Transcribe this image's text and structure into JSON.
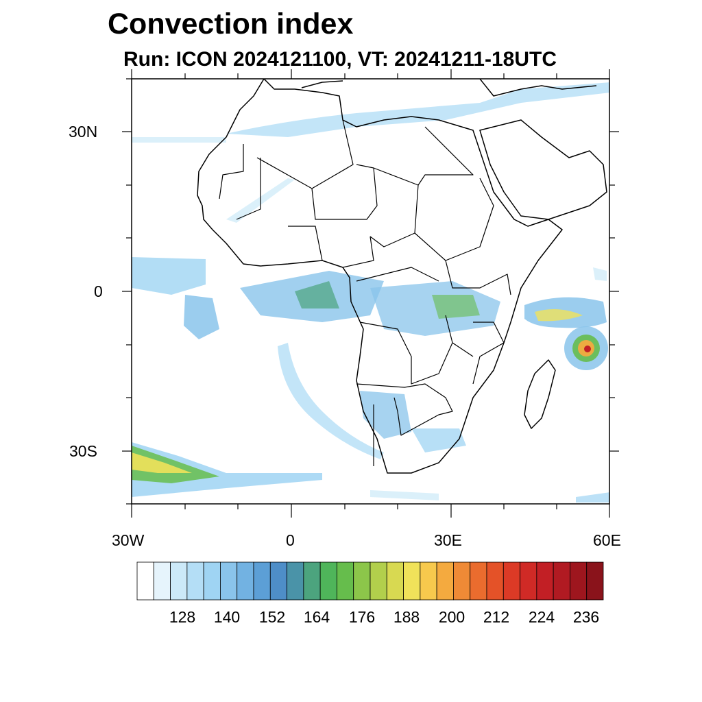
{
  "map": {
    "title": "Convection index",
    "subtitle": "Run: ICON 2024121100,  VT: 20241211-18UTC",
    "lat_labels": [
      "30N",
      "0",
      "30S"
    ],
    "lon_labels": [
      "30W",
      "0",
      "30E",
      "60E"
    ],
    "lon_range": [
      -30,
      60
    ],
    "lat_range": [
      -40,
      40
    ],
    "colorbar": {
      "labels": [
        "128",
        "140",
        "152",
        "164",
        "176",
        "188",
        "200",
        "212",
        "224",
        "236"
      ],
      "colors": [
        "#ffffff",
        "#e6f4fc",
        "#cce9f8",
        "#b4def6",
        "#9fd4f3",
        "#8ac4eb",
        "#72b2e2",
        "#5c9fd6",
        "#4e8ec8",
        "#4a93a8",
        "#4ca47e",
        "#4fb55a",
        "#66bd4c",
        "#8cc64a",
        "#b2cf4c",
        "#d8d951",
        "#f0e25a",
        "#f7c94d",
        "#f4aa3f",
        "#ef8a36",
        "#ea6c2e",
        "#e45228",
        "#dc3a26",
        "#d02a26",
        "#c21f25",
        "#b11a22",
        "#9e161e",
        "#8a131b"
      ]
    }
  }
}
